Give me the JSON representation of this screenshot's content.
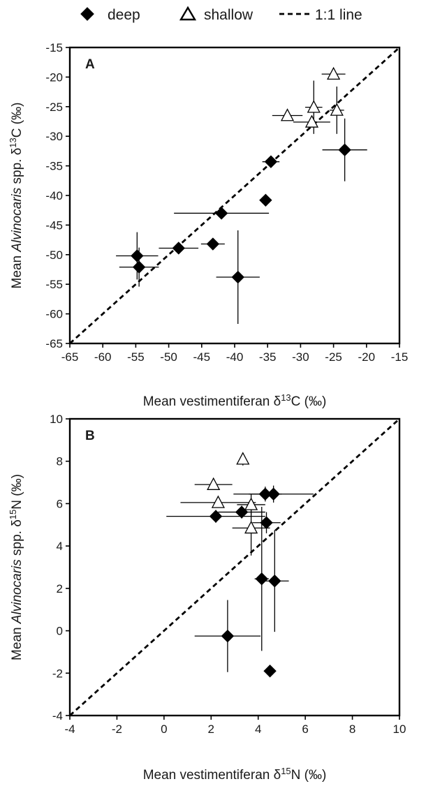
{
  "legend": [
    {
      "label": "deep",
      "marker": "diamond"
    },
    {
      "label": "shallow",
      "marker": "triangle"
    },
    {
      "label": "1:1 line",
      "marker": "dashed"
    }
  ],
  "colors": {
    "deep_fill": "#000000",
    "shallow_fill": "#ffffff",
    "stroke": "#000000"
  },
  "chart_data": [
    {
      "type": "scatter",
      "panel_label": "A",
      "xlabel": "Mean vestimentiferan δ13C (‰)",
      "ylabel": "Mean Alvinocaris spp. δ13C (‰)",
      "xlim": [
        -65,
        -15
      ],
      "ylim": [
        -65,
        -15
      ],
      "xticks": [
        "-65",
        "-60",
        "-55",
        "-50",
        "-45",
        "-40",
        "-35",
        "-30",
        "-25",
        "-20",
        "-15"
      ],
      "yticks": [
        "-65",
        "-60",
        "-55",
        "-50",
        "-45",
        "-40",
        "-35",
        "-30",
        "-25",
        "-20",
        "-15"
      ],
      "reference_line": {
        "name": "1:1 line",
        "from": [
          -65,
          -65
        ],
        "to": [
          -15,
          -15
        ]
      },
      "series": [
        {
          "name": "deep",
          "points": [
            {
              "x": -54.8,
              "y": -50.2,
              "xerr": 3.2,
              "yerr": 4
            },
            {
              "x": -54.5,
              "y": -52.1,
              "xerr": 3,
              "yerr": 3.3
            },
            {
              "x": -48.5,
              "y": -48.9,
              "xerr": 3,
              "yerr": 0
            },
            {
              "x": -43.3,
              "y": -48.2,
              "xerr": 1.8,
              "yerr": 0
            },
            {
              "x": -42,
              "y": -43,
              "xerr": 7.2,
              "yerr": 0
            },
            {
              "x": -39.5,
              "y": -53.8,
              "xerr": 3.3,
              "yerr": 7.9
            },
            {
              "x": -35.3,
              "y": -40.8,
              "xerr": 0,
              "yerr": 0
            },
            {
              "x": -34.5,
              "y": -34.3,
              "xerr": 1.3,
              "yerr": 0
            },
            {
              "x": -23.3,
              "y": -32.3,
              "xerr": 3.4,
              "yerr": 5.3
            }
          ]
        },
        {
          "name": "shallow",
          "points": [
            {
              "x": -32,
              "y": -26.5,
              "xerr": 2.3,
              "yerr": 0
            },
            {
              "x": -28,
              "y": -25.1,
              "xerr": 1.3,
              "yerr": 4.5
            },
            {
              "x": -28.3,
              "y": -27.6,
              "xerr": 2.8,
              "yerr": 0
            },
            {
              "x": -25,
              "y": -19.5,
              "xerr": 1.8,
              "yerr": 0
            },
            {
              "x": -24.5,
              "y": -25.6,
              "xerr": 1.1,
              "yerr": 4
            }
          ]
        }
      ]
    },
    {
      "type": "scatter",
      "panel_label": "B",
      "xlabel": "Mean vestimentiferan δ15N (‰)",
      "ylabel": "Mean Alvinocaris spp. δ15N (‰)",
      "xlim": [
        -4,
        10
      ],
      "ylim": [
        -4,
        10
      ],
      "xticks": [
        "-4",
        "-2",
        "0",
        "2",
        "4",
        "6",
        "8",
        "10"
      ],
      "yticks": [
        "-4",
        "-2",
        "0",
        "2",
        "4",
        "6",
        "8",
        "10"
      ],
      "reference_line": {
        "name": "1:1 line",
        "from": [
          -4,
          -4
        ],
        "to": [
          10,
          10
        ]
      },
      "series": [
        {
          "name": "deep",
          "points": [
            {
              "x": 2.2,
              "y": 5.4,
              "xerr": 2.1,
              "yerr": 0.3
            },
            {
              "x": 3.3,
              "y": 5.6,
              "xerr": 1,
              "yerr": 0.3
            },
            {
              "x": 4.3,
              "y": 6.45,
              "xerr": 0.7,
              "yerr": 0.35
            },
            {
              "x": 4.65,
              "y": 6.45,
              "xerr": 1.7,
              "yerr": 0.4
            },
            {
              "x": 4.35,
              "y": 5.1,
              "xerr": 0.6,
              "yerr": 0.5
            },
            {
              "x": 4.15,
              "y": 2.45,
              "xerr": 0.3,
              "yerr": 3.4
            },
            {
              "x": 4.7,
              "y": 2.35,
              "xerr": 0.6,
              "yerr": 2.4
            },
            {
              "x": 2.7,
              "y": -0.25,
              "xerr": 1.4,
              "yerr": 1.7
            },
            {
              "x": 4.5,
              "y": -1.9,
              "xerr": 0,
              "yerr": 0
            }
          ]
        },
        {
          "name": "shallow",
          "points": [
            {
              "x": 3.35,
              "y": 8.1,
              "xerr": 0,
              "yerr": 0.3
            },
            {
              "x": 2.1,
              "y": 6.9,
              "xerr": 0.8,
              "yerr": 0
            },
            {
              "x": 2.3,
              "y": 6.05,
              "xerr": 1.6,
              "yerr": 0
            },
            {
              "x": 3.7,
              "y": 5.95,
              "xerr": 0.6,
              "yerr": 0.5
            },
            {
              "x": 3.7,
              "y": 4.85,
              "xerr": 0.8,
              "yerr": 1.3
            }
          ]
        }
      ]
    }
  ]
}
